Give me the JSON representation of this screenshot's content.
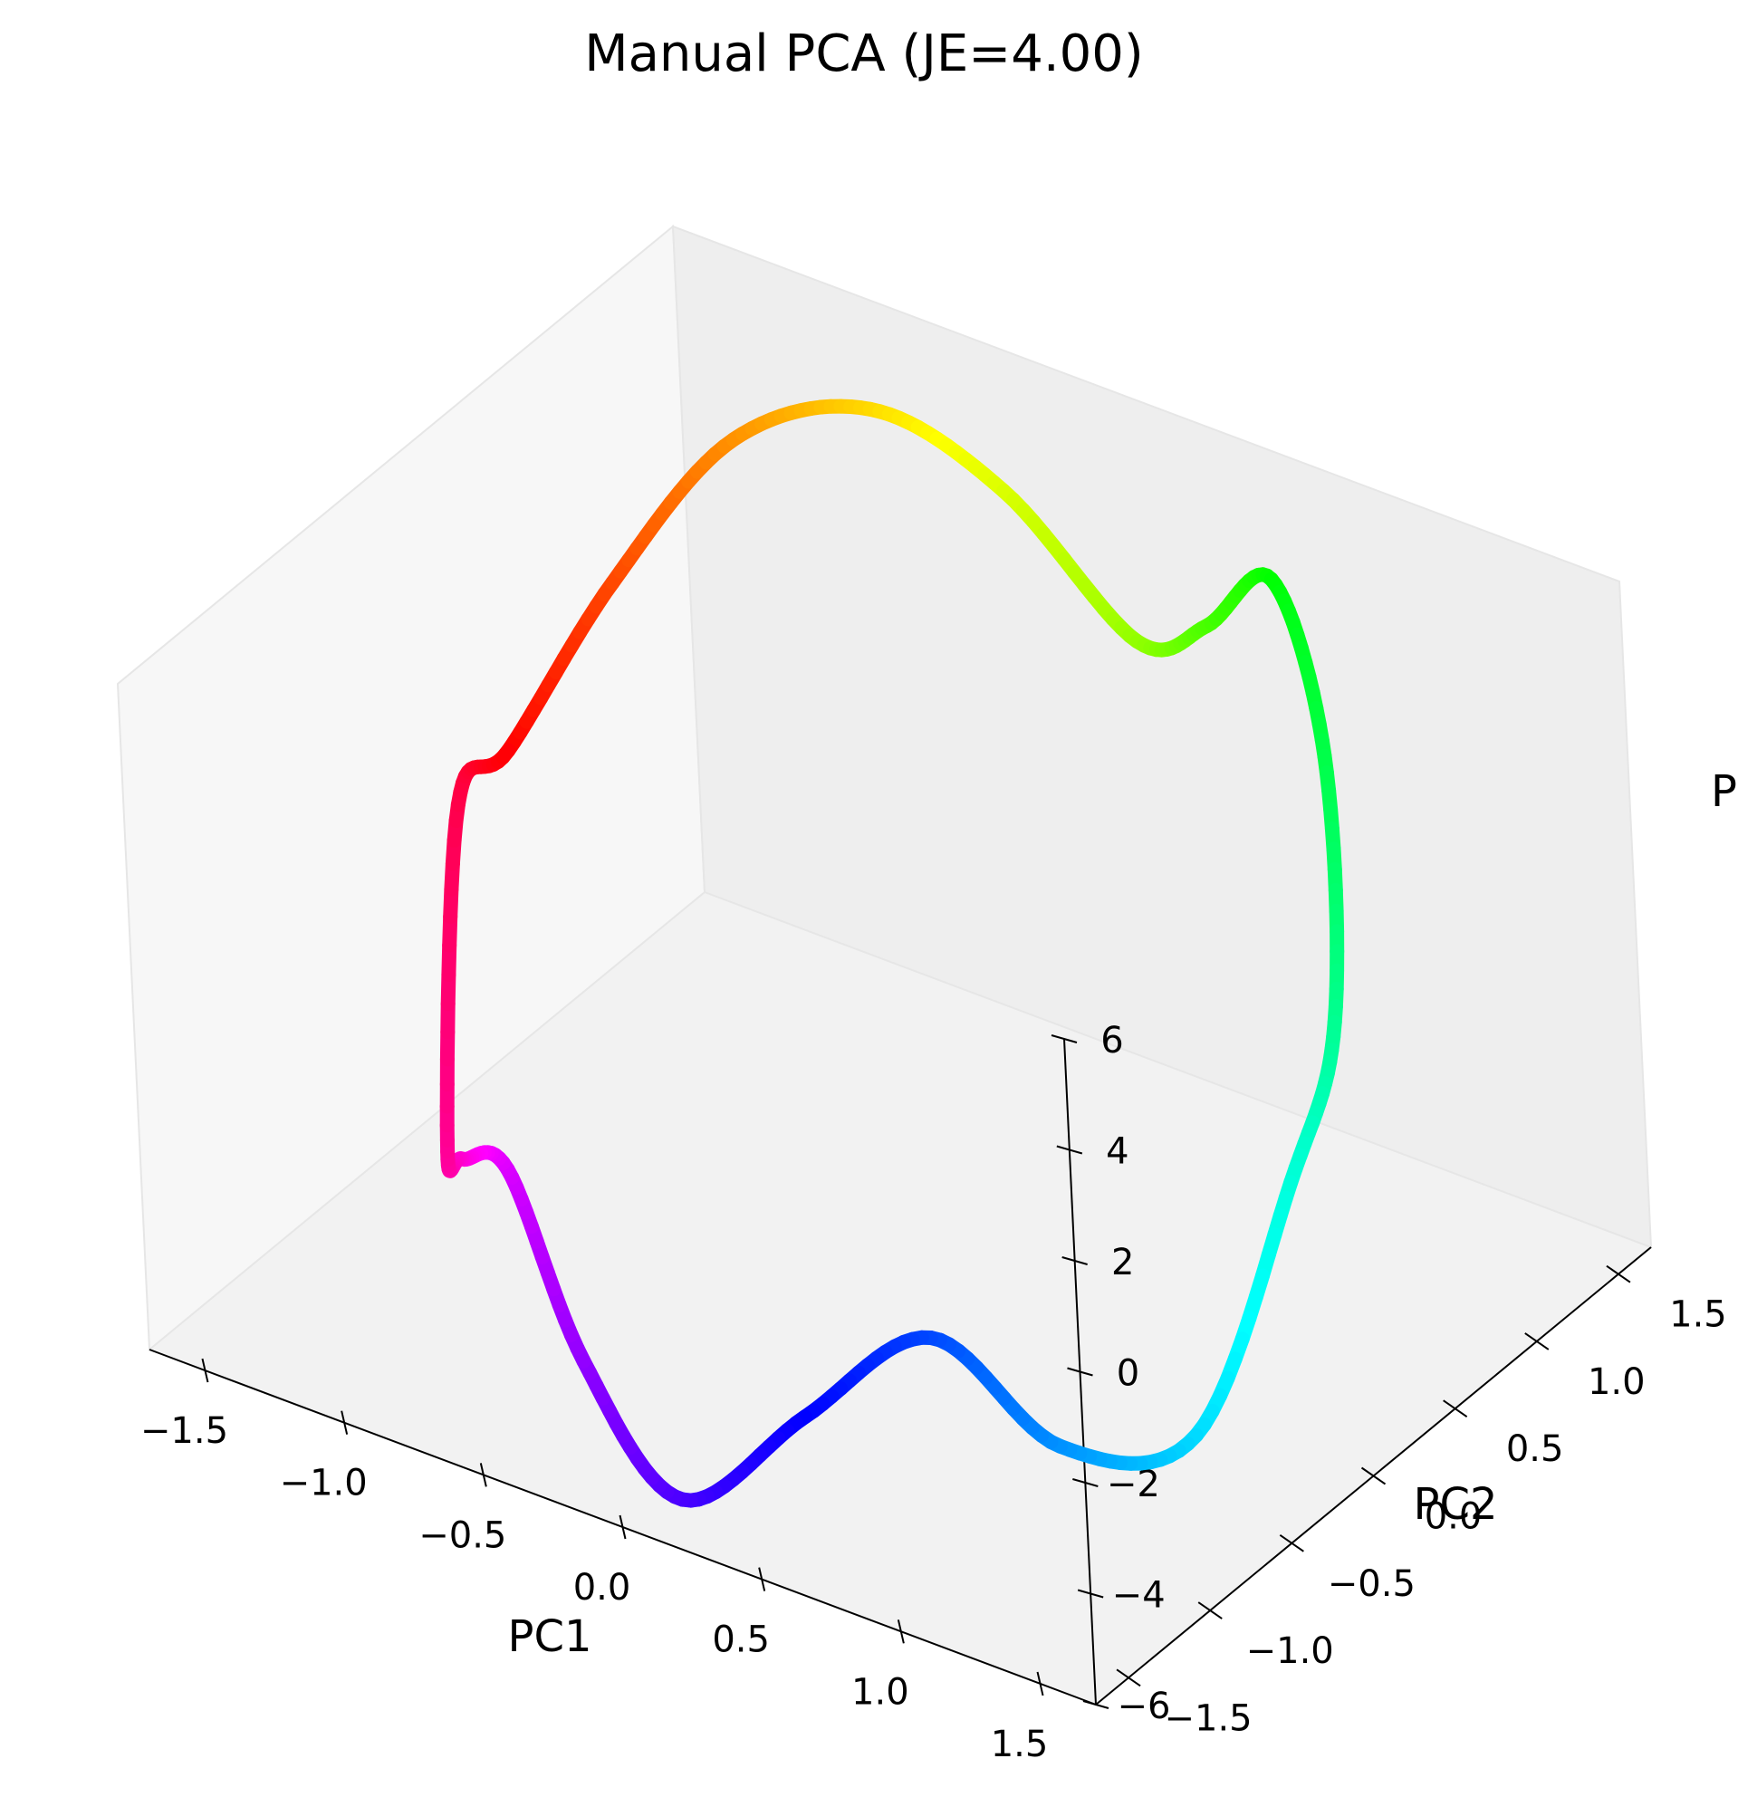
{
  "chart_data": {
    "type": "line3d",
    "title": "Manual PCA (JE=4.00)",
    "xlabel": "PC1",
    "ylabel": "PC2",
    "zlabel": "P",
    "xlim": [
      -1.7,
      1.7
    ],
    "ylim": [
      -1.7,
      1.7
    ],
    "zlim": [
      -6,
      6
    ],
    "xticks": [
      "−1.5",
      "−1.0",
      "−0.5",
      "0.0",
      "0.5",
      "1.0",
      "1.5"
    ],
    "yticks": [
      "−1.5",
      "−1.0",
      "−0.5",
      "0.0",
      "0.5",
      "1.0",
      "1.5"
    ],
    "zticks": [
      "−6",
      "−4",
      "−2",
      "0",
      "2",
      "4",
      "6"
    ],
    "grid": false,
    "colormap": "hsv",
    "series": [
      {
        "description": "closed curve of points colored by hue",
        "points": [
          {
            "x": -1.4,
            "y": 0.1,
            "z": 1.0
          },
          {
            "x": -1.3,
            "y": 0.6,
            "z": 3.0
          },
          {
            "x": -1.05,
            "y": 0.95,
            "z": 5.2
          },
          {
            "x": -0.7,
            "y": 1.2,
            "z": 5.8
          },
          {
            "x": -0.35,
            "y": 1.4,
            "z": 4.5
          },
          {
            "x": 0.05,
            "y": 1.5,
            "z": 2.3
          },
          {
            "x": 0.4,
            "y": 1.35,
            "z": 3.6
          },
          {
            "x": 0.8,
            "y": 1.1,
            "z": 5.8
          },
          {
            "x": 1.15,
            "y": 0.8,
            "z": 4.0
          },
          {
            "x": 1.42,
            "y": 0.35,
            "z": 0.8
          },
          {
            "x": 1.48,
            "y": -0.05,
            "z": -1.0
          },
          {
            "x": 1.4,
            "y": -0.55,
            "z": -4.5
          },
          {
            "x": 1.15,
            "y": -0.95,
            "z": -4.2
          },
          {
            "x": 0.85,
            "y": -1.2,
            "z": -2.2
          },
          {
            "x": 0.5,
            "y": -1.4,
            "z": -3.8
          },
          {
            "x": 0.1,
            "y": -1.5,
            "z": -5.8
          },
          {
            "x": -0.3,
            "y": -1.4,
            "z": -4.3
          },
          {
            "x": -0.7,
            "y": -1.15,
            "z": -2.2
          },
          {
            "x": -1.05,
            "y": -0.85,
            "z": -3.4
          },
          {
            "x": -1.35,
            "y": -0.45,
            "z": -4.6
          },
          {
            "x": -1.5,
            "y": -0.05,
            "z": 0.2
          }
        ]
      }
    ]
  }
}
